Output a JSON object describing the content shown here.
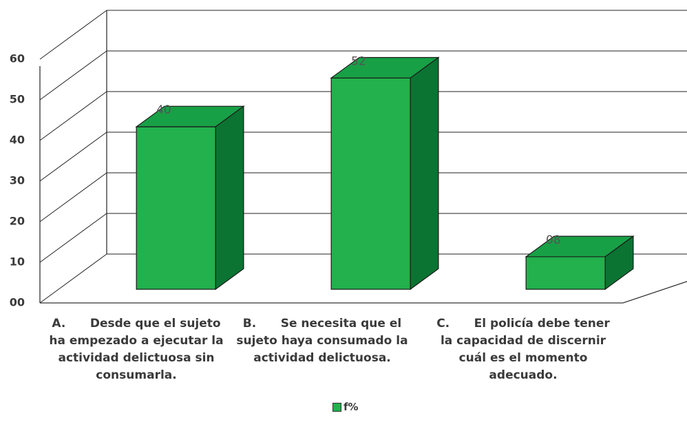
{
  "chart_data": {
    "type": "bar3d",
    "categories": [
      "A.      Desde que el sujeto ha empezado a ejecutar la actividad delictuosa sin consumarla.",
      "B.      Se necesita que el sujeto haya consumado la actividad delictuosa.",
      "C.      El policía debe tener la capacidad de discernir cuál es el momento adecuado."
    ],
    "series": [
      {
        "name": "f%",
        "color": "#22b14c",
        "values": [
          40,
          52,
          8
        ],
        "value_labels": [
          "40",
          "52",
          "08"
        ]
      }
    ],
    "ylim": [
      0,
      60
    ],
    "yticks": [
      {
        "value": 0,
        "label": "00"
      },
      10,
      20,
      30,
      40,
      50,
      60
    ],
    "grid": true,
    "legend": "bottom"
  }
}
